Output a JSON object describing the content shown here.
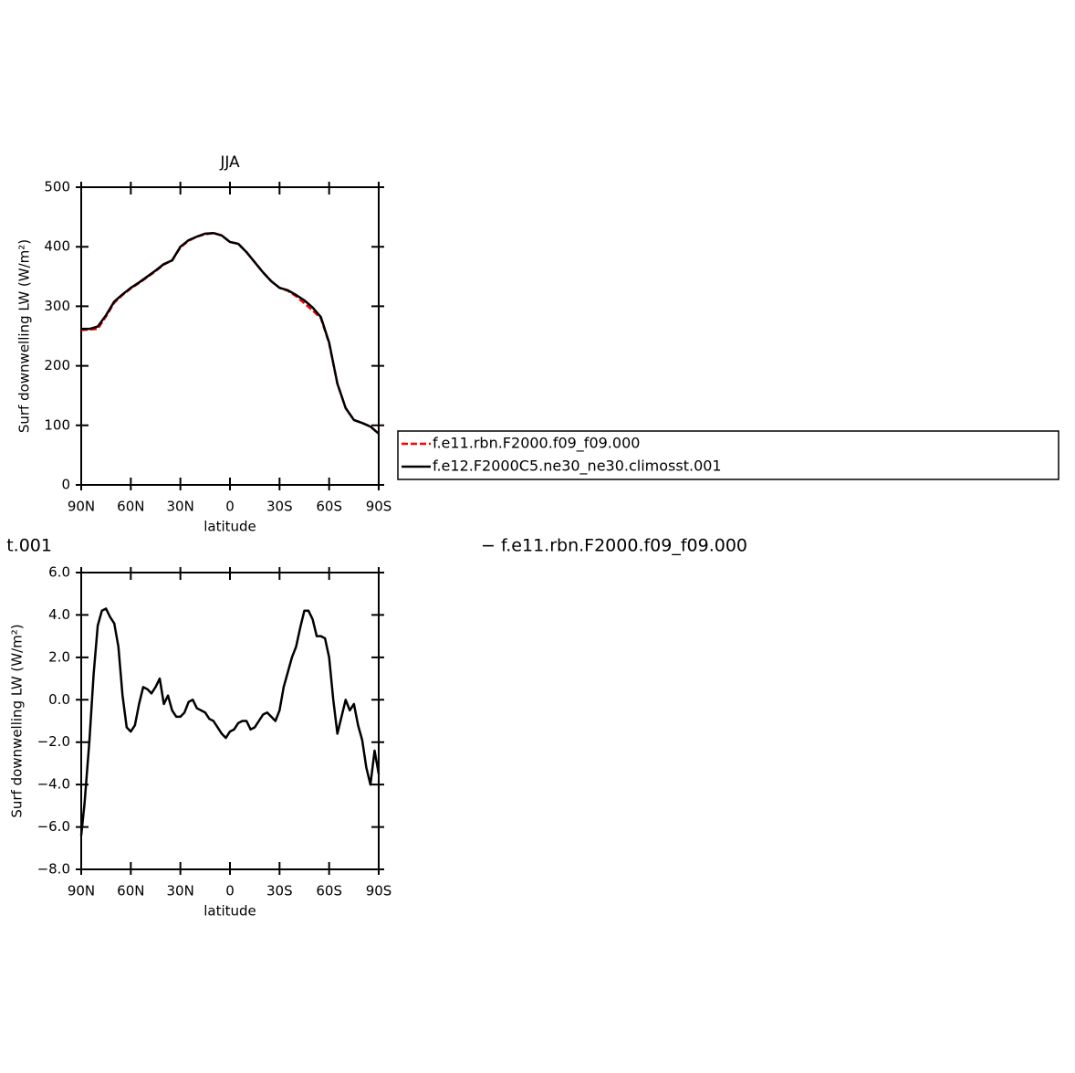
{
  "chart_data": [
    {
      "type": "line",
      "title": "JJA",
      "xlabel": "latitude",
      "ylabel": "Surf downwelling LW (W/m²)",
      "x": [
        90,
        85,
        80,
        75,
        70,
        65,
        60,
        55,
        50,
        45,
        40,
        35,
        30,
        25,
        20,
        15,
        10,
        5,
        0,
        -5,
        -10,
        -15,
        -20,
        -25,
        -30,
        -35,
        -40,
        -45,
        -50,
        -55,
        -60,
        -65,
        -70,
        -75,
        -80,
        -85,
        -90
      ],
      "xlim": [
        90,
        -90
      ],
      "xticks": [
        {
          "value": 90,
          "label": "90N"
        },
        {
          "value": 60,
          "label": "60N"
        },
        {
          "value": 30,
          "label": "30N"
        },
        0,
        {
          "value": -30,
          "label": "30S"
        },
        {
          "value": -60,
          "label": "60S"
        },
        {
          "value": -90,
          "label": "90S"
        }
      ],
      "ylim": [
        0,
        500
      ],
      "yticks": [
        0,
        100,
        200,
        300,
        400,
        500
      ],
      "legend": "right",
      "series": [
        {
          "name": "f.e11.rbn.F2000.f09_f09.000",
          "color": "#ff0000",
          "style": "dashed",
          "values": [
            260,
            261,
            262,
            283,
            306,
            319,
            330,
            339,
            349,
            359,
            370,
            377,
            399,
            410,
            417,
            421,
            423,
            419,
            408,
            405,
            391,
            374,
            357,
            342,
            331,
            326,
            317,
            305,
            293,
            280,
            238,
            170,
            129,
            109,
            104,
            98,
            86
          ]
        },
        {
          "name": "f.e12.F2000C5.ne30_ne30.climosst.001",
          "color": "#000000",
          "style": "solid",
          "values": [
            262,
            262,
            266,
            285,
            308,
            320,
            331,
            340,
            350,
            360,
            371,
            377,
            400,
            411,
            417,
            422,
            423,
            419,
            408,
            405,
            391,
            374,
            357,
            342,
            331,
            327,
            319,
            310,
            298,
            282,
            239,
            170,
            129,
            109,
            104,
            98,
            86
          ]
        }
      ]
    },
    {
      "type": "line",
      "title_left": "t.001",
      "title_right": "− f.e11.rbn.F2000.f09_f09.000",
      "xlabel": "latitude",
      "ylabel": "Surf downwelling LW (W/m²)",
      "x": [
        90,
        88,
        85,
        82.5,
        80,
        77.5,
        75,
        72.5,
        70,
        67.5,
        65,
        62.5,
        60,
        57.5,
        55,
        52.5,
        50,
        47.5,
        45,
        42.5,
        40,
        37.5,
        35,
        32.5,
        30,
        27.5,
        25,
        22.5,
        20,
        17.5,
        15,
        12.5,
        10,
        7.5,
        5,
        2.5,
        0,
        -2.5,
        -5,
        -7.5,
        -10,
        -12.5,
        -15,
        -17.5,
        -20,
        -22.5,
        -25,
        -27.5,
        -30,
        -32.5,
        -35,
        -37.5,
        -40,
        -42.5,
        -45,
        -47.5,
        -50,
        -52.5,
        -55,
        -57.5,
        -60,
        -62.5,
        -65,
        -67.5,
        -70,
        -72.5,
        -75,
        -77.5,
        -80,
        -82.5,
        -85,
        -87.5,
        -90
      ],
      "xlim": [
        90,
        -90
      ],
      "xticks": [
        {
          "value": 90,
          "label": "90N"
        },
        {
          "value": 60,
          "label": "60N"
        },
        {
          "value": 30,
          "label": "30N"
        },
        0,
        {
          "value": -30,
          "label": "30S"
        },
        {
          "value": -60,
          "label": "60S"
        },
        {
          "value": -90,
          "label": "90S"
        }
      ],
      "ylim": [
        -8,
        6
      ],
      "yticks": [
        {
          "value": -8,
          "label": "−8.0"
        },
        {
          "value": -6,
          "label": "−6.0"
        },
        {
          "value": -4,
          "label": "−4.0"
        },
        {
          "value": -2,
          "label": "−2.0"
        },
        {
          "value": 0,
          "label": "0.0"
        },
        {
          "value": 2,
          "label": "2.0"
        },
        {
          "value": 4,
          "label": "4.0"
        },
        {
          "value": 6,
          "label": "6.0"
        }
      ],
      "series": [
        {
          "color": "#000000",
          "style": "solid",
          "values": [
            -6.4,
            -4.9,
            -1.9,
            1.2,
            3.5,
            4.2,
            4.3,
            3.9,
            3.6,
            2.5,
            0.2,
            -1.3,
            -1.5,
            -1.2,
            -0.2,
            0.6,
            0.5,
            0.3,
            0.6,
            1.0,
            -0.2,
            0.2,
            -0.5,
            -0.8,
            -0.8,
            -0.6,
            -0.1,
            0.0,
            -0.4,
            -0.5,
            -0.6,
            -0.9,
            -1.0,
            -1.3,
            -1.6,
            -1.8,
            -1.5,
            -1.4,
            -1.1,
            -1.0,
            -1.0,
            -1.4,
            -1.3,
            -1.0,
            -0.7,
            -0.6,
            -0.8,
            -1.0,
            -0.5,
            0.6,
            1.3,
            2.0,
            2.5,
            3.4,
            4.2,
            4.2,
            3.8,
            3.0,
            3.0,
            2.9,
            2.0,
            0.0,
            -1.6,
            -0.8,
            0.0,
            -0.5,
            -0.2,
            -1.2,
            -1.9,
            -3.2,
            -4.0,
            -2.4,
            -3.5
          ]
        }
      ]
    }
  ]
}
